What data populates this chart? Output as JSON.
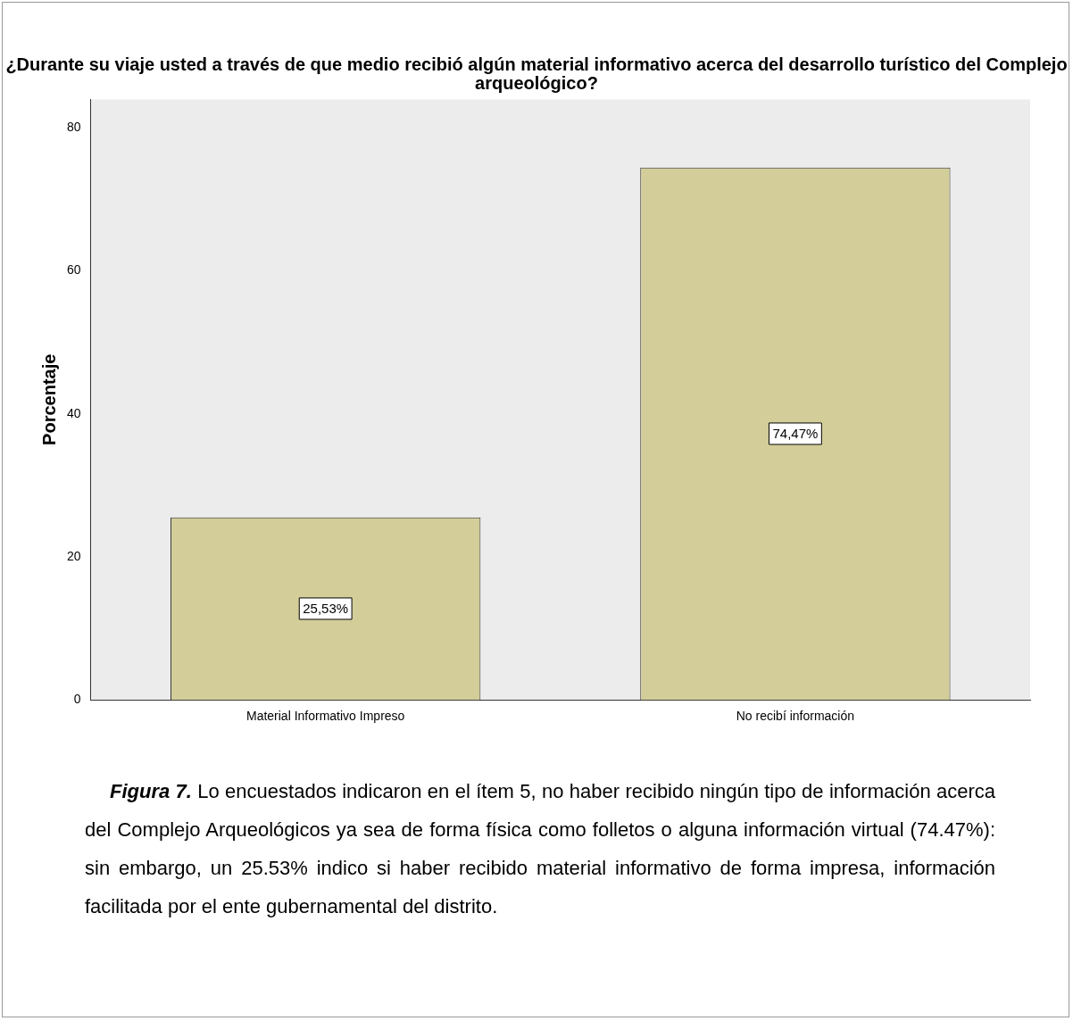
{
  "chart_data": {
    "type": "bar",
    "title": "¿Durante su viaje usted a través de que medio recibió algún material informativo acerca del desarrollo turístico del Complejo arqueológico?",
    "ylabel": "Porcentaje",
    "categories": [
      "Material Informativo Impreso",
      "No recibí información"
    ],
    "values": [
      25.53,
      74.47
    ],
    "value_labels": [
      "25,53%",
      "74,47%"
    ],
    "color": "#d3ce99",
    "ylim": [
      0,
      84
    ],
    "yticks": [
      0,
      20,
      40,
      60,
      80
    ],
    "grid": false,
    "legend": false,
    "annotations": [
      "Figura 7. Lo encuestados indicaron en el ítem 5, no haber recibido ningún tipo de información acerca del Complejo Arqueológicos ya sea de forma física como folletos o alguna información virtual (74.47%): sin embargo, un 25.53% indico si haber recibido material informativo de forma impresa, información facilitada por el ente gubernamental del distrito."
    ]
  }
}
